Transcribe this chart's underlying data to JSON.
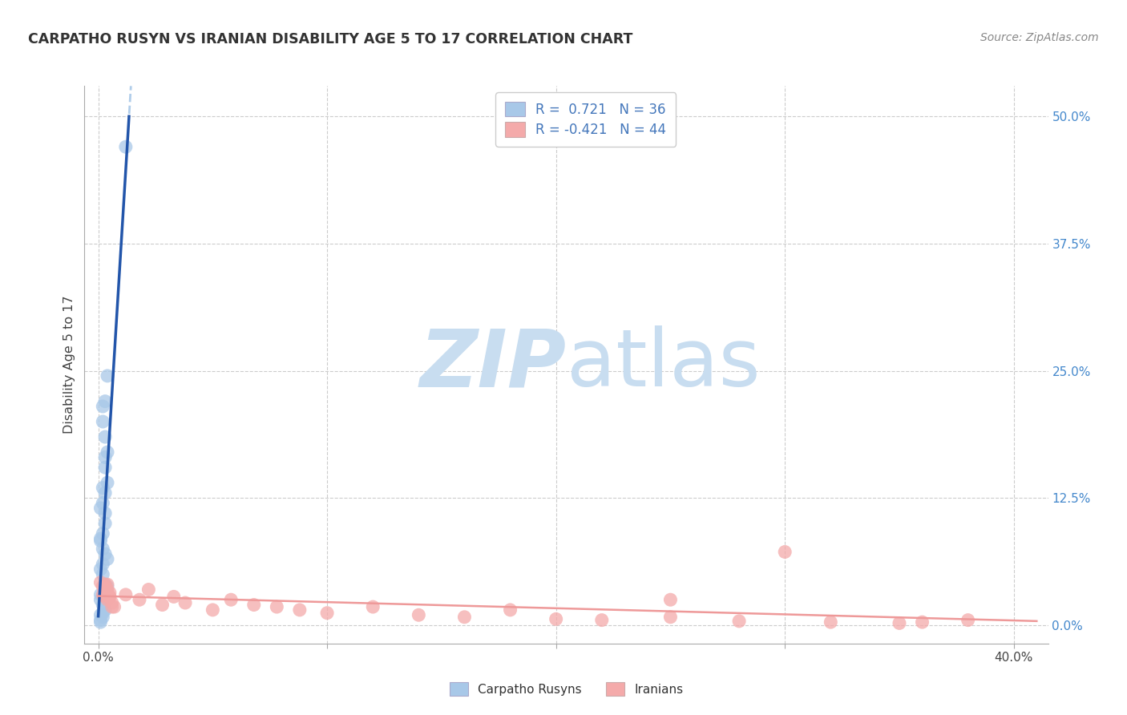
{
  "title": "CARPATHO RUSYN VS IRANIAN DISABILITY AGE 5 TO 17 CORRELATION CHART",
  "source": "Source: ZipAtlas.com",
  "ylabel": "Disability Age 5 to 17",
  "blue_R": 0.721,
  "blue_N": 36,
  "pink_R": -0.421,
  "pink_N": 44,
  "blue_color": "#A8C8E8",
  "pink_color": "#F4AAAA",
  "blue_line_color": "#2255AA",
  "pink_line_color": "#EE9999",
  "watermark_zip": "ZIP",
  "watermark_atlas": "atlas",
  "watermark_color_zip": "#C8DDF0",
  "watermark_color_atlas": "#C8DDF0",
  "ytick_values": [
    0.0,
    0.125,
    0.25,
    0.375,
    0.5
  ],
  "ytick_labels": [
    "0.0%",
    "12.5%",
    "25.0%",
    "37.5%",
    "50.0%"
  ],
  "xtick_values": [
    0.0,
    0.1,
    0.2,
    0.3,
    0.4
  ],
  "xtick_labels": [
    "0.0%",
    "",
    "",
    "",
    "40.0%"
  ],
  "xlim": [
    -0.006,
    0.415
  ],
  "ylim": [
    -0.018,
    0.53
  ],
  "blue_x": [
    0.012,
    0.004,
    0.003,
    0.002,
    0.002,
    0.003,
    0.004,
    0.003,
    0.003,
    0.004,
    0.002,
    0.003,
    0.002,
    0.001,
    0.003,
    0.003,
    0.002,
    0.001,
    0.001,
    0.002,
    0.003,
    0.004,
    0.002,
    0.001,
    0.002,
    0.003,
    0.004,
    0.001,
    0.001,
    0.002,
    0.003,
    0.002,
    0.001,
    0.002,
    0.001,
    0.001
  ],
  "blue_y": [
    0.47,
    0.245,
    0.22,
    0.215,
    0.2,
    0.185,
    0.17,
    0.165,
    0.155,
    0.14,
    0.135,
    0.13,
    0.12,
    0.115,
    0.11,
    0.1,
    0.09,
    0.085,
    0.083,
    0.075,
    0.07,
    0.065,
    0.06,
    0.055,
    0.05,
    0.04,
    0.038,
    0.03,
    0.025,
    0.02,
    0.015,
    0.012,
    0.01,
    0.008,
    0.005,
    0.003
  ],
  "pink_x": [
    0.001,
    0.002,
    0.003,
    0.002,
    0.003,
    0.004,
    0.003,
    0.003,
    0.004,
    0.005,
    0.004,
    0.003,
    0.004,
    0.005,
    0.005,
    0.006,
    0.006,
    0.007,
    0.012,
    0.018,
    0.022,
    0.028,
    0.033,
    0.038,
    0.05,
    0.058,
    0.068,
    0.078,
    0.088,
    0.1,
    0.12,
    0.14,
    0.16,
    0.18,
    0.2,
    0.22,
    0.25,
    0.28,
    0.32,
    0.35,
    0.38,
    0.3,
    0.36,
    0.25
  ],
  "pink_y": [
    0.042,
    0.038,
    0.033,
    0.03,
    0.028,
    0.025,
    0.04,
    0.035,
    0.032,
    0.028,
    0.04,
    0.038,
    0.035,
    0.032,
    0.028,
    0.022,
    0.018,
    0.018,
    0.03,
    0.025,
    0.035,
    0.02,
    0.028,
    0.022,
    0.015,
    0.025,
    0.02,
    0.018,
    0.015,
    0.012,
    0.018,
    0.01,
    0.008,
    0.015,
    0.006,
    0.005,
    0.008,
    0.004,
    0.003,
    0.002,
    0.005,
    0.072,
    0.003,
    0.025
  ]
}
